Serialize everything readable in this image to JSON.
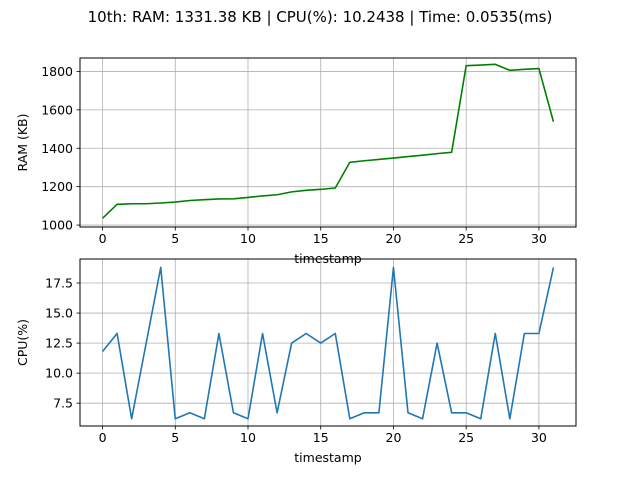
{
  "figure": {
    "title": "10th: RAM: 1331.38 KB | CPU(%): 10.2438 | Time: 0.0535(ms)"
  },
  "colors": {
    "ram_line": "#008000",
    "cpu_line": "#1f77b4",
    "grid": "#b0b0b0"
  },
  "chart_data": [
    {
      "type": "line",
      "name": "ram",
      "title": "",
      "xlabel": "timestamp",
      "ylabel": "RAM (KB)",
      "xlim": [
        -1.55,
        32.55
      ],
      "ylim": [
        990,
        1870
      ],
      "xticks": [
        0,
        5,
        10,
        15,
        20,
        25,
        30
      ],
      "xtick_labels": [
        "0",
        "5",
        "10",
        "15",
        "20",
        "25",
        "30"
      ],
      "yticks": [
        1000,
        1200,
        1400,
        1600,
        1800
      ],
      "ytick_labels": [
        "1000",
        "1200",
        "1400",
        "1600",
        "1800"
      ],
      "grid": true,
      "x": [
        0,
        1,
        2,
        3,
        4,
        5,
        6,
        7,
        8,
        9,
        10,
        11,
        12,
        13,
        14,
        15,
        16,
        17,
        18,
        19,
        20,
        21,
        22,
        23,
        24,
        25,
        26,
        27,
        28,
        29,
        30,
        31
      ],
      "values": [
        1035,
        1108,
        1111,
        1111,
        1115,
        1120,
        1128,
        1132,
        1136,
        1137,
        1144,
        1152,
        1158,
        1173,
        1181,
        1186,
        1193,
        1327,
        1335,
        1342,
        1349,
        1357,
        1364,
        1372,
        1379,
        1830,
        1833,
        1837,
        1806,
        1811,
        1815,
        1538
      ]
    },
    {
      "type": "line",
      "name": "cpu",
      "title": "",
      "xlabel": "timestamp",
      "ylabel": "CPU(%)",
      "xlim": [
        -1.55,
        32.55
      ],
      "ylim": [
        5.6,
        19.5
      ],
      "xticks": [
        0,
        5,
        10,
        15,
        20,
        25,
        30
      ],
      "xtick_labels": [
        "0",
        "5",
        "10",
        "15",
        "20",
        "25",
        "30"
      ],
      "yticks": [
        7.5,
        10.0,
        12.5,
        15.0,
        17.5
      ],
      "ytick_labels": [
        "7.5",
        "10.0",
        "12.5",
        "15.0",
        "17.5"
      ],
      "grid": true,
      "x": [
        0,
        1,
        2,
        3,
        4,
        5,
        6,
        7,
        8,
        9,
        10,
        11,
        12,
        13,
        14,
        15,
        16,
        17,
        18,
        19,
        20,
        21,
        22,
        23,
        24,
        25,
        26,
        27,
        28,
        29,
        30,
        31
      ],
      "values": [
        11.8,
        13.3,
        6.2,
        12.5,
        18.8,
        6.2,
        6.7,
        6.2,
        13.3,
        6.7,
        6.2,
        13.3,
        6.7,
        12.5,
        13.3,
        12.5,
        13.3,
        6.2,
        6.7,
        6.7,
        18.8,
        6.7,
        6.2,
        12.5,
        6.7,
        6.7,
        6.2,
        13.3,
        6.2,
        13.3,
        13.3,
        18.8
      ]
    }
  ]
}
